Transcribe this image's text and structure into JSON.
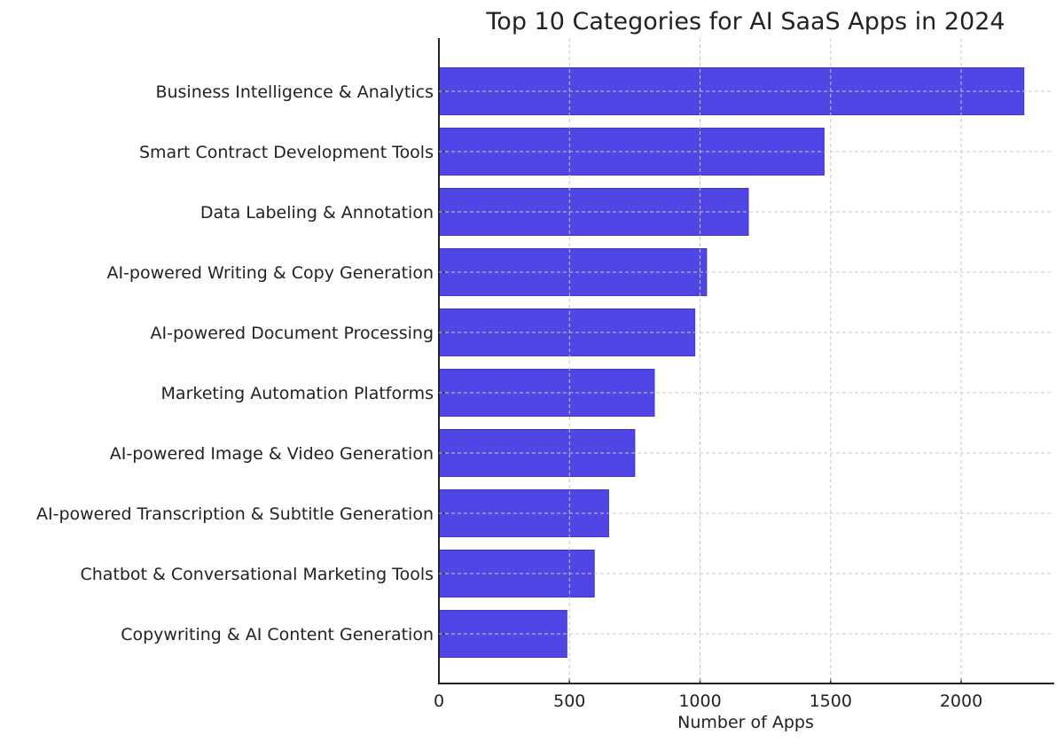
{
  "chart_data": {
    "type": "bar",
    "orientation": "horizontal",
    "title": "Top 10 Categories for AI SaaS Apps in 2024",
    "xlabel": "Number of Apps",
    "ylabel": "",
    "xlim": [
      0,
      2353
    ],
    "xticks": [
      "0",
      "500",
      "1000",
      "1500",
      "2000"
    ],
    "grid": true,
    "bar_color": "#4f46e5",
    "categories": [
      "Business Intelligence & Analytics",
      "Smart Contract Development Tools",
      "Data Labeling & Annotation",
      "AI-powered Writing & Copy Generation",
      "AI-powered Document Processing",
      "Marketing Automation Platforms",
      "AI-powered Image & Video Generation",
      "AI-powered Transcription & Subtitle Generation",
      "Chatbot & Conversational Marketing Tools",
      "Copywriting & AI Content Generation"
    ],
    "values": [
      2240,
      1475,
      1185,
      1025,
      980,
      825,
      750,
      650,
      595,
      490
    ]
  }
}
